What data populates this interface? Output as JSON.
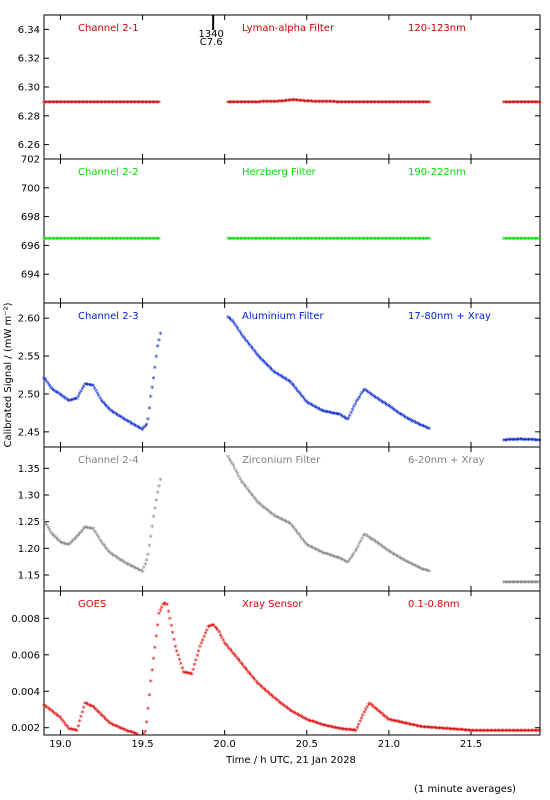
{
  "chart_data": {
    "type": "scatter",
    "xlabel": "Time / h UTC, 21 Jan 2028",
    "ylabel": "Calibrated Signal / (mW m⁻²)",
    "footnote": "(1 minute averages)",
    "xlim": [
      18.9,
      21.92
    ],
    "xticks": [
      "19.0",
      "19.5",
      "20.0",
      "20.5",
      "21.0",
      "21.5"
    ],
    "xtick_values": [
      19.0,
      19.5,
      20.0,
      20.5,
      21.0,
      21.5
    ],
    "marker_label": "1340",
    "marker_sublabel": "C7.6",
    "marker_x": 19.93,
    "panels": [
      {
        "channel": "Channel 2-1",
        "filter": "Lyman-alpha Filter",
        "band": "120-123nm",
        "color": "#cc0000",
        "ylim": [
          6.25,
          6.35
        ],
        "yticks": [
          "6.26",
          "6.28",
          "6.30",
          "6.32",
          "6.34"
        ],
        "ytick_values": [
          6.26,
          6.28,
          6.3,
          6.32,
          6.34
        ],
        "segments": [
          {
            "x": [
              18.9,
              19.0,
              19.2,
              19.4,
              19.6
            ],
            "y": [
              6.289,
              6.289,
              6.289,
              6.289,
              6.289
            ]
          },
          {
            "x": [
              20.02,
              20.2,
              20.35,
              20.42,
              20.5,
              20.7,
              21.0,
              21.25
            ],
            "y": [
              6.289,
              6.289,
              6.2895,
              6.2905,
              6.2895,
              6.289,
              6.289,
              6.289
            ]
          },
          {
            "x": [
              21.7,
              21.8,
              21.92
            ],
            "y": [
              6.289,
              6.289,
              6.289
            ]
          }
        ]
      },
      {
        "channel": "Channel 2-2",
        "filter": "Herzberg Filter",
        "band": "190-222nm",
        "color": "#00dd00",
        "ylim": [
          692.0,
          702.0
        ],
        "yticks": [
          "694",
          "696",
          "698",
          "700",
          "702"
        ],
        "ytick_values": [
          694,
          696,
          698,
          700,
          702
        ],
        "segments": [
          {
            "x": [
              18.9,
              19.2,
              19.6
            ],
            "y": [
              696.4,
              696.4,
              696.4
            ]
          },
          {
            "x": [
              20.02,
              20.6,
              21.25
            ],
            "y": [
              696.4,
              696.4,
              696.4
            ]
          },
          {
            "x": [
              21.7,
              21.92
            ],
            "y": [
              696.4,
              696.4
            ]
          }
        ]
      },
      {
        "channel": "Channel 2-3",
        "filter": "Aluminium Filter",
        "band": "17-80nm + Xray",
        "color": "#0022cc",
        "ylim": [
          2.43,
          2.62
        ],
        "yticks": [
          "2.45",
          "2.50",
          "2.55",
          "2.60"
        ],
        "ytick_values": [
          2.45,
          2.5,
          2.55,
          2.6
        ],
        "segments": [
          {
            "x": [
              18.9,
              18.95,
              19.0,
              19.05,
              19.1,
              19.15,
              19.2,
              19.25,
              19.3,
              19.4,
              19.5,
              19.53,
              19.55,
              19.57,
              19.59,
              19.61
            ],
            "y": [
              2.52,
              2.505,
              2.498,
              2.49,
              2.493,
              2.512,
              2.51,
              2.49,
              2.478,
              2.464,
              2.452,
              2.46,
              2.495,
              2.525,
              2.56,
              2.58
            ]
          },
          {
            "x": [
              20.02,
              20.05,
              20.1,
              20.2,
              20.3,
              20.4,
              20.5,
              20.6,
              20.7,
              20.75,
              20.8,
              20.85,
              20.9,
              21.0,
              21.1,
              21.2,
              21.25
            ],
            "y": [
              2.6,
              2.595,
              2.578,
              2.55,
              2.528,
              2.515,
              2.488,
              2.476,
              2.472,
              2.465,
              2.488,
              2.505,
              2.497,
              2.483,
              2.468,
              2.457,
              2.453
            ]
          },
          {
            "x": [
              21.7,
              21.8,
              21.92
            ],
            "y": [
              2.438,
              2.439,
              2.438
            ]
          }
        ]
      },
      {
        "channel": "Channel 2-4",
        "filter": "Zirconium Filter",
        "band": "6-20nm + Xray",
        "color": "#808080",
        "ylim": [
          1.12,
          1.39
        ],
        "yticks": [
          "1.15",
          "1.20",
          "1.25",
          "1.30",
          "1.35"
        ],
        "ytick_values": [
          1.15,
          1.2,
          1.25,
          1.3,
          1.35
        ],
        "segments": [
          {
            "x": [
              18.9,
              18.95,
              19.0,
              19.05,
              19.1,
              19.15,
              19.2,
              19.25,
              19.3,
              19.4,
              19.5,
              19.53,
              19.55,
              19.57,
              19.59,
              19.61
            ],
            "y": [
              1.25,
              1.225,
              1.21,
              1.205,
              1.22,
              1.238,
              1.235,
              1.21,
              1.19,
              1.17,
              1.155,
              1.18,
              1.22,
              1.265,
              1.3,
              1.33
            ]
          },
          {
            "x": [
              20.02,
              20.05,
              20.1,
              20.2,
              20.3,
              20.4,
              20.5,
              20.6,
              20.7,
              20.75,
              20.8,
              20.85,
              20.9,
              21.0,
              21.1,
              21.2,
              21.25
            ],
            "y": [
              1.37,
              1.355,
              1.325,
              1.285,
              1.26,
              1.245,
              1.205,
              1.19,
              1.18,
              1.172,
              1.195,
              1.225,
              1.215,
              1.193,
              1.175,
              1.16,
              1.155
            ]
          },
          {
            "x": [
              21.7,
              21.8,
              21.92
            ],
            "y": [
              1.135,
              1.135,
              1.135
            ]
          }
        ]
      },
      {
        "channel": "GOES",
        "filter": "Xray Sensor",
        "band": "0.1-0.8nm",
        "color": "#dd0000",
        "ylim": [
          0.0016,
          0.0095
        ],
        "yticks": [
          "0.002",
          "0.004",
          "0.006",
          "0.008"
        ],
        "ytick_values": [
          0.002,
          0.004,
          0.006,
          0.008
        ],
        "segments": [
          {
            "x": [
              18.9,
              19.0,
              19.05,
              19.1,
              19.15,
              19.2,
              19.3,
              19.4,
              19.5,
              19.52,
              19.55,
              19.6,
              19.63,
              19.65,
              19.7,
              19.75,
              19.8,
              19.85,
              19.9,
              19.93,
              19.96,
              20.0,
              20.1,
              20.2,
              20.3,
              20.4,
              20.5,
              20.6,
              20.7,
              20.8,
              20.85,
              20.88,
              20.92,
              21.0,
              21.2,
              21.5,
              21.92
            ],
            "y": [
              0.0032,
              0.0025,
              0.0019,
              0.0018,
              0.0033,
              0.0031,
              0.0022,
              0.0018,
              0.0015,
              0.0018,
              0.0045,
              0.0082,
              0.0088,
              0.0087,
              0.0064,
              0.005,
              0.0049,
              0.0064,
              0.0075,
              0.0076,
              0.0073,
              0.0066,
              0.0055,
              0.0044,
              0.0036,
              0.0029,
              0.0024,
              0.0021,
              0.0019,
              0.0018,
              0.0028,
              0.0033,
              0.003,
              0.0024,
              0.002,
              0.0018,
              0.0018
            ]
          }
        ]
      }
    ]
  }
}
